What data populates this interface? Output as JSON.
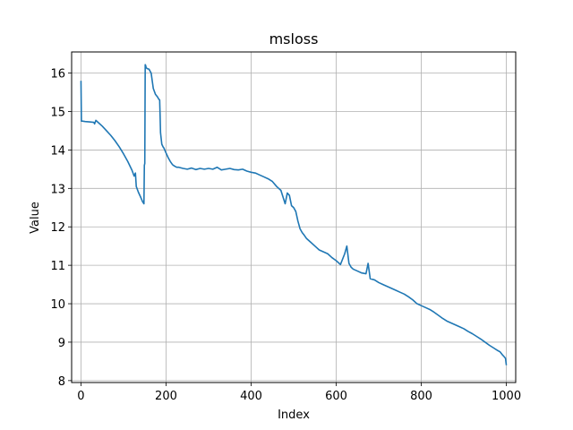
{
  "chart_data": {
    "type": "line",
    "title": "msloss",
    "xlabel": "Index",
    "ylabel": "Value",
    "xlim": [
      -22,
      1022
    ],
    "ylim": [
      7.95,
      16.55
    ],
    "xticks": [
      0,
      200,
      400,
      600,
      800,
      1000
    ],
    "yticks": [
      8,
      9,
      10,
      11,
      12,
      13,
      14,
      15,
      16
    ],
    "xtick_labels": [
      "0",
      "200",
      "400",
      "600",
      "800",
      "1000"
    ],
    "ytick_labels": [
      "8",
      "9",
      "10",
      "11",
      "12",
      "13",
      "14",
      "15",
      "16"
    ],
    "grid": true,
    "series": [
      {
        "color": "#1f77b4",
        "x": [
          0,
          1,
          3,
          10,
          20,
          30,
          32,
          35,
          40,
          50,
          60,
          70,
          80,
          90,
          100,
          110,
          120,
          125,
          128,
          130,
          135,
          140,
          145,
          148,
          149,
          150,
          151,
          152,
          153,
          155,
          160,
          165,
          170,
          175,
          180,
          183,
          185,
          186,
          187,
          188,
          190,
          193,
          195,
          200,
          205,
          210,
          215,
          220,
          225,
          230,
          240,
          250,
          260,
          270,
          280,
          290,
          300,
          310,
          320,
          330,
          340,
          350,
          360,
          370,
          380,
          390,
          400,
          410,
          420,
          430,
          440,
          450,
          460,
          470,
          480,
          485,
          490,
          495,
          500,
          505,
          510,
          515,
          520,
          525,
          530,
          540,
          550,
          560,
          570,
          580,
          590,
          600,
          610,
          620,
          625,
          630,
          635,
          640,
          650,
          660,
          670,
          675,
          680,
          690,
          700,
          710,
          720,
          730,
          740,
          750,
          760,
          770,
          780,
          790,
          800,
          810,
          820,
          830,
          840,
          850,
          860,
          870,
          880,
          890,
          900,
          910,
          920,
          930,
          940,
          950,
          960,
          970,
          980,
          985,
          990,
          995,
          998,
          1000
        ],
        "y": [
          15.8,
          14.75,
          14.75,
          14.74,
          14.73,
          14.72,
          14.68,
          14.77,
          14.72,
          14.62,
          14.5,
          14.38,
          14.24,
          14.08,
          13.9,
          13.7,
          13.47,
          13.32,
          13.4,
          13.05,
          12.9,
          12.78,
          12.65,
          12.6,
          13.6,
          13.65,
          16.22,
          16.2,
          16.15,
          16.12,
          16.1,
          16.0,
          15.6,
          15.45,
          15.38,
          15.32,
          15.3,
          14.9,
          14.45,
          14.35,
          14.15,
          14.08,
          14.05,
          13.92,
          13.8,
          13.7,
          13.62,
          13.58,
          13.55,
          13.55,
          13.52,
          13.5,
          13.53,
          13.49,
          13.52,
          13.5,
          13.52,
          13.5,
          13.55,
          13.48,
          13.5,
          13.52,
          13.49,
          13.48,
          13.5,
          13.45,
          13.42,
          13.4,
          13.35,
          13.3,
          13.25,
          13.18,
          13.05,
          12.95,
          12.6,
          12.88,
          12.82,
          12.55,
          12.5,
          12.4,
          12.15,
          11.95,
          11.85,
          11.78,
          11.7,
          11.6,
          11.5,
          11.4,
          11.35,
          11.3,
          11.2,
          11.12,
          11.02,
          11.3,
          11.5,
          11.05,
          10.95,
          10.9,
          10.85,
          10.8,
          10.78,
          11.05,
          10.65,
          10.62,
          10.55,
          10.5,
          10.45,
          10.4,
          10.35,
          10.3,
          10.25,
          10.18,
          10.1,
          10.0,
          9.95,
          9.9,
          9.85,
          9.78,
          9.7,
          9.62,
          9.55,
          9.5,
          9.45,
          9.4,
          9.35,
          9.28,
          9.22,
          9.15,
          9.08,
          9.0,
          8.92,
          8.85,
          8.78,
          8.75,
          8.68,
          8.62,
          8.58,
          8.4
        ]
      }
    ]
  }
}
